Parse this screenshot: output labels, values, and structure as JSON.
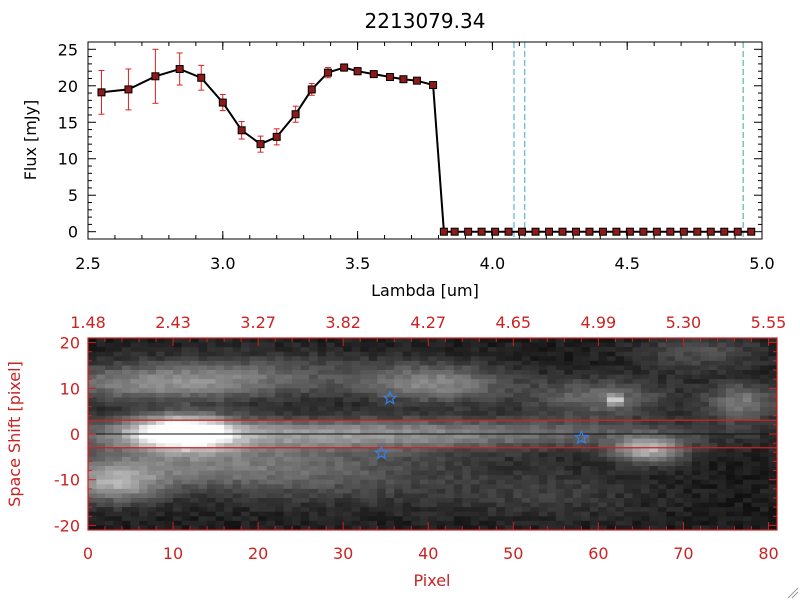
{
  "colors": {
    "background": "#ffffff",
    "axis_black": "#000000",
    "accent_red": "#cc2222",
    "marker_red": "#8b1a1a",
    "errorbar_red": "#dd2222",
    "dashed_cyan": "#3aa6d8",
    "dashed_teal": "#3aa88c",
    "star_blue": "#3a7fe0"
  },
  "chart_data": [
    {
      "type": "line",
      "title": "2213079.34",
      "xlabel": "Lambda [um]",
      "ylabel": "Flux [mJy]",
      "xlim": [
        2.5,
        5.0
      ],
      "ylim": [
        -1,
        26
      ],
      "x_ticks": [
        "2.5",
        "3.0",
        "3.5",
        "4.0",
        "4.5",
        "5.0"
      ],
      "x_tick_values": [
        2.5,
        3.0,
        3.5,
        4.0,
        4.5,
        5.0
      ],
      "y_ticks": [
        "0",
        "5",
        "10",
        "15",
        "20",
        "25"
      ],
      "y_tick_values": [
        0,
        5,
        10,
        15,
        20,
        25
      ],
      "grid": false,
      "series": [
        {
          "x": [
            2.55,
            2.65,
            2.75,
            2.84,
            2.92,
            3.0,
            3.07,
            3.14,
            3.2,
            3.27,
            3.33,
            3.39,
            3.45,
            3.5,
            3.56,
            3.62,
            3.67,
            3.72,
            3.78,
            3.82,
            3.86,
            3.91,
            3.96,
            4.01,
            4.06,
            4.11,
            4.16,
            4.21,
            4.26,
            4.31,
            4.36,
            4.41,
            4.46,
            4.51,
            4.56,
            4.61,
            4.66,
            4.71,
            4.76,
            4.81,
            4.86,
            4.91,
            4.96
          ],
          "y": [
            19.1,
            19.5,
            21.3,
            22.3,
            21.1,
            17.7,
            13.9,
            12.0,
            13.0,
            16.1,
            19.5,
            21.8,
            22.5,
            22.0,
            21.6,
            21.2,
            20.9,
            20.7,
            20.1,
            0,
            0,
            0,
            0,
            0,
            0,
            0,
            0,
            0,
            0,
            0,
            0,
            0,
            0,
            0,
            0,
            0,
            0,
            0,
            0,
            0,
            0,
            0,
            0
          ],
          "yerr": [
            3.0,
            2.8,
            3.7,
            2.2,
            1.7,
            1.1,
            1.2,
            1.1,
            1.1,
            1.1,
            0.8,
            0.7,
            0.5,
            0.5,
            0.4,
            0.4,
            0.4,
            0.4,
            0.4,
            0,
            0,
            0,
            0,
            0,
            0,
            0,
            0,
            0,
            0,
            0,
            0,
            0,
            0,
            0,
            0,
            0,
            0,
            0,
            0,
            0,
            0,
            0,
            0
          ]
        }
      ],
      "vertical_dashed_lines": [
        {
          "x": 4.08,
          "color": "dashed_cyan"
        },
        {
          "x": 4.12,
          "color": "dashed_cyan"
        },
        {
          "x": 4.93,
          "color": "dashed_teal"
        }
      ]
    },
    {
      "type": "heatmap",
      "xlabel": "Pixel",
      "ylabel": "Space Shift [pixel]",
      "xlim": [
        0,
        81
      ],
      "ylim": [
        -21,
        21
      ],
      "x_ticks": [
        "0",
        "10",
        "20",
        "30",
        "40",
        "50",
        "60",
        "70",
        "80"
      ],
      "x_tick_values": [
        0,
        10,
        20,
        30,
        40,
        50,
        60,
        70,
        80
      ],
      "y_ticks": [
        "-20",
        "-10",
        "0",
        "10",
        "20"
      ],
      "y_tick_values": [
        -20,
        -10,
        0,
        10,
        20
      ],
      "top_ticks": [
        "1.48",
        "2.43",
        "3.27",
        "3.82",
        "4.27",
        "4.65",
        "4.99",
        "5.30",
        "5.55"
      ],
      "top_tick_values": [
        0,
        10,
        20,
        30,
        40,
        50,
        60,
        70,
        80
      ],
      "horizontal_lines_red": [
        3.0,
        -3.0
      ],
      "horizontal_line_black": 0,
      "stars": [
        {
          "x": 35.5,
          "y": 7.8
        },
        {
          "x": 34.5,
          "y": -4.2
        },
        {
          "x": 58.0,
          "y": -0.8
        }
      ],
      "blobs": [
        {
          "x": 11,
          "y": 0.3,
          "sx": 4.2,
          "sy": 2.6,
          "a": 0.95
        },
        {
          "x": 30,
          "y": 0,
          "sx": 26,
          "sy": 2.4,
          "a": 0.45
        },
        {
          "x": 8,
          "y": 11,
          "sx": 10,
          "sy": 2.8,
          "a": 0.35
        },
        {
          "x": 12,
          "y": -7,
          "sx": 12,
          "sy": 3.5,
          "a": 0.3
        },
        {
          "x": 3,
          "y": -11,
          "sx": 4,
          "sy": 3,
          "a": 0.45
        },
        {
          "x": 20,
          "y": 13,
          "sx": 12,
          "sy": 3.5,
          "a": 0.2
        },
        {
          "x": 41,
          "y": 11,
          "sx": 6,
          "sy": 3,
          "a": 0.38
        },
        {
          "x": 60,
          "y": 8,
          "sx": 6,
          "sy": 3,
          "a": 0.3
        },
        {
          "x": 66,
          "y": -3.5,
          "sx": 3,
          "sy": 2,
          "a": 0.55
        },
        {
          "x": 77,
          "y": 7,
          "sx": 3,
          "sy": 3,
          "a": 0.35
        },
        {
          "x": 62,
          "y": 7.5,
          "sx": 0.6,
          "sy": 0.8,
          "a": 0.6
        },
        {
          "x": 30,
          "y": -9,
          "sx": 12,
          "sy": 5,
          "a": 0.18
        },
        {
          "x": 72,
          "y": 18,
          "sx": 5,
          "sy": 3,
          "a": 0.2
        },
        {
          "x": 55,
          "y": -13,
          "sx": 8,
          "sy": 4,
          "a": 0.12
        }
      ]
    }
  ]
}
